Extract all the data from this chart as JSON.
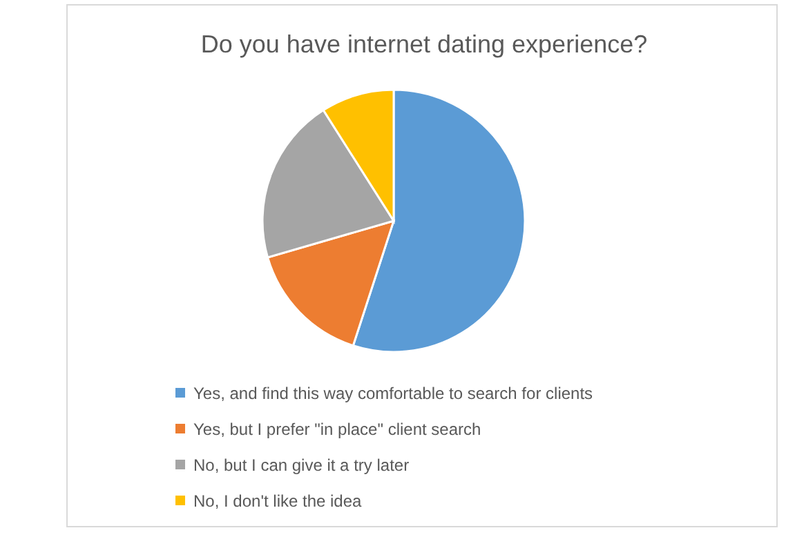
{
  "chart_data": {
    "type": "pie",
    "title": "Do you have internet dating experience?",
    "categories": [
      "Yes, and find this way comfortable to search for clients",
      "Yes, but I prefer \"in place\" client search",
      "No, but I can give it a try later",
      "No, I don't like the idea"
    ],
    "values": [
      55,
      15.5,
      20.5,
      9
    ],
    "colors": [
      "#5b9bd5",
      "#ed7d31",
      "#a5a5a5",
      "#ffc000"
    ],
    "legend": "bottom"
  }
}
